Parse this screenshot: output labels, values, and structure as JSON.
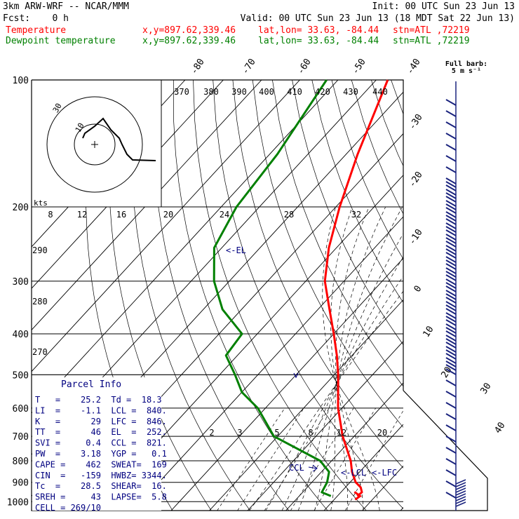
{
  "header": {
    "model": "3km ARW-WRF -- NCAR/MMM",
    "init": "Init: 00 UTC Sun 23 Jun 13",
    "fcst": "Fcst:    0 h",
    "valid": "Valid: 00 UTC Sun 23 Jun 13 (18 MDT Sat 22 Jun 13)",
    "temp_line": {
      "label": "Temperature",
      "xy": "x,y=897.62,339.46",
      "latlon": "lat,lon= 33.63, -84.44",
      "stn": "stn=ATL ,72219",
      "color": "#ff0000"
    },
    "dew_line": {
      "label": "Dewpoint temperature",
      "xy": "x,y=897.62,339.46",
      "latlon": "lat,lon= 33.63, -84.44",
      "stn": "stn=ATL ,72219",
      "color": "#008000"
    }
  },
  "barb_legend": {
    "line1": "Full barb:",
    "line2": "5 m s⁻¹"
  },
  "chart_data": {
    "type": "line",
    "pressure_labels": [
      "100",
      "200",
      "300",
      "400",
      "500",
      "600",
      "700",
      "800",
      "900",
      "1000"
    ],
    "pressure_levels": [
      100,
      200,
      300,
      400,
      500,
      600,
      700,
      800,
      900,
      1000
    ],
    "temp_ticks": [
      "-80",
      "-70",
      "-60",
      "-50",
      "-40",
      "-30",
      "-20",
      "-10",
      "0",
      "10",
      "20",
      "30",
      "40"
    ],
    "temp_tick_values": [
      -80,
      -70,
      -60,
      -50,
      -40,
      -30,
      -20,
      -10,
      0,
      10,
      20,
      30,
      40
    ],
    "mixing_ratio_labels": [
      "2",
      "3",
      "5",
      "8",
      "12",
      "20"
    ],
    "mixing_ratio_values": [
      2,
      3,
      5,
      8,
      12,
      20
    ],
    "theta_labels": [
      "290",
      "280",
      "270"
    ],
    "theta_e_labels": [
      "370",
      "380",
      "390",
      "400",
      "410",
      "420",
      "430",
      "440"
    ],
    "hodograph": {
      "kts_label": "kts",
      "speed_labels": [
        "8",
        "12",
        "16",
        "20",
        "24",
        "28",
        "32"
      ],
      "ring_labels": [
        "30",
        "10"
      ],
      "x": [
        -1,
        0,
        2,
        4,
        5,
        6,
        7,
        8,
        9,
        11
      ],
      "y": [
        1,
        2,
        3,
        3,
        2,
        2,
        1,
        0,
        -1,
        -1
      ]
    },
    "series": [
      {
        "name": "Temperature",
        "color": "#ff0000",
        "pressure": [
          100,
          150,
          200,
          250,
          300,
          350,
          400,
          450,
          500,
          600,
          700,
          800,
          850,
          900,
          925,
          950,
          970
        ],
        "values": [
          -67,
          -57,
          -49,
          -42,
          -35,
          -27,
          -20,
          -14,
          -9,
          -1,
          7,
          15,
          18,
          21.5,
          24,
          25.5,
          25.2
        ]
      },
      {
        "name": "Dewpoint temperature",
        "color": "#008000",
        "pressure": [
          100,
          150,
          200,
          250,
          300,
          350,
          400,
          450,
          500,
          550,
          600,
          700,
          800,
          850,
          900,
          950,
          970
        ],
        "values": [
          -83,
          -78,
          -76,
          -72,
          -64,
          -55,
          -44,
          -43,
          -36,
          -30,
          -22,
          -11,
          7,
          12,
          14,
          15,
          18.3
        ]
      }
    ],
    "annotations": {
      "el": "<-EL",
      "lcl": "<-LCL",
      "lfc": "<-LFC",
      "ccl": "CCL"
    }
  },
  "parcel_info": {
    "title": "Parcel Info",
    "rows": [
      "T   =    25.2  Td =  18.3",
      "LI  =    -1.1  LCL =  840.",
      "K   =      29  LFC =  846.",
      "TT  =      46  EL  =  252.",
      "SVI =     0.4  CCL =  821.",
      "PW  =    3.18  YGP =   0.1",
      "CAPE =    462  SWEAT=  169",
      "CIN  =   -159  HWBZ= 3344.",
      "Tc  =    28.5  SHEAR=  16.",
      "SREH =     43  LAPSE=  5.8",
      "CELL = 269/10"
    ]
  }
}
